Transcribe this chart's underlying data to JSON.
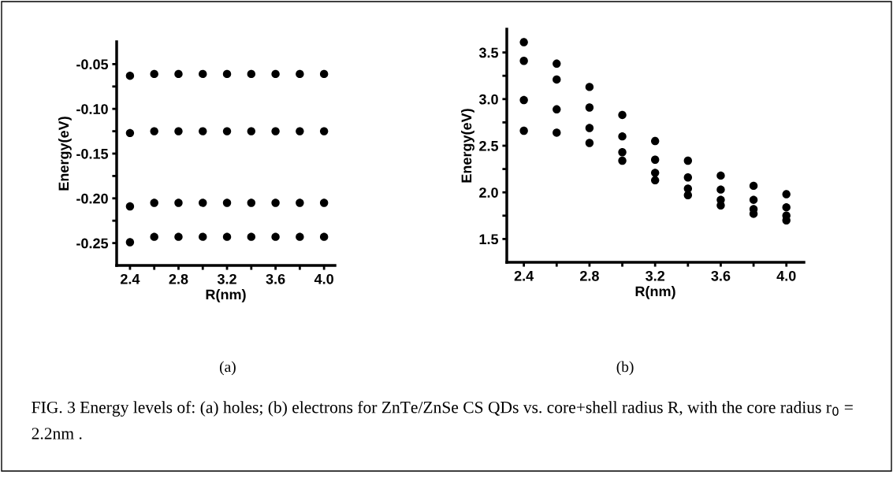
{
  "chart_data": [
    {
      "type": "scatter",
      "xlabel": "R(nm)",
      "ylabel": "Energy(eV)",
      "marker": "circle",
      "grid": false,
      "xlim": [
        2.29,
        4.09
      ],
      "xticks": [
        2.4,
        {
          "value": 2.6,
          "label": null
        },
        2.8,
        {
          "value": 3.0,
          "label": null
        },
        3.2,
        {
          "value": 3.4,
          "label": null
        },
        3.6,
        {
          "value": 3.8,
          "label": null
        },
        {
          "value": 4.0,
          "label": "4.0"
        }
      ],
      "ylim": [
        -0.275,
        -0.025
      ],
      "yticks": [
        {
          "value": -0.25,
          "label": "-0.25"
        },
        {
          "value": -0.225,
          "label": null
        },
        {
          "value": -0.2,
          "label": "-0.20"
        },
        {
          "value": -0.175,
          "label": null
        },
        {
          "value": -0.15,
          "label": "-0.15"
        },
        {
          "value": -0.125,
          "label": null
        },
        {
          "value": -0.1,
          "label": "-0.10"
        },
        {
          "value": -0.075,
          "label": null
        },
        {
          "value": -0.05,
          "label": "-0.05"
        }
      ],
      "series": [
        {
          "color": "#000000",
          "x": [
            2.4,
            2.6,
            2.8,
            3.0,
            3.2,
            3.4,
            3.6,
            3.8,
            4.0
          ],
          "values": [
            -0.063,
            -0.061,
            -0.061,
            -0.061,
            -0.061,
            -0.061,
            -0.061,
            -0.061,
            -0.061
          ]
        },
        {
          "color": "#000000",
          "x": [
            2.4,
            2.6,
            2.8,
            3.0,
            3.2,
            3.4,
            3.6,
            3.8,
            4.0
          ],
          "values": [
            -0.127,
            -0.125,
            -0.125,
            -0.125,
            -0.125,
            -0.125,
            -0.125,
            -0.125,
            -0.125
          ]
        },
        {
          "color": "#000000",
          "x": [
            2.4,
            2.6,
            2.8,
            3.0,
            3.2,
            3.4,
            3.6,
            3.8,
            4.0
          ],
          "values": [
            -0.209,
            -0.205,
            -0.205,
            -0.205,
            -0.205,
            -0.205,
            -0.205,
            -0.205,
            -0.205
          ]
        },
        {
          "color": "#000000",
          "x": [
            2.4,
            2.6,
            2.8,
            3.0,
            3.2,
            3.4,
            3.6,
            3.8,
            4.0
          ],
          "values": [
            -0.249,
            -0.243,
            -0.243,
            -0.243,
            -0.243,
            -0.243,
            -0.243,
            -0.243,
            -0.243
          ]
        }
      ],
      "annotations": [
        "(a)"
      ]
    },
    {
      "type": "scatter",
      "xlabel": "R(nm)",
      "ylabel": "Energy(eV)",
      "marker": "circle",
      "grid": false,
      "xlim": [
        2.296,
        4.107
      ],
      "xticks": [
        2.4,
        {
          "value": 2.6,
          "label": null
        },
        2.8,
        {
          "value": 3.0,
          "label": null
        },
        3.2,
        {
          "value": 3.4,
          "label": null
        },
        3.6,
        {
          "value": 3.8,
          "label": null
        },
        {
          "value": 4.0,
          "label": "4.0"
        }
      ],
      "ylim": [
        1.25,
        3.75
      ],
      "yticks": [
        1.5,
        {
          "value": 1.75,
          "label": null
        },
        {
          "value": 2.0,
          "label": "2.0"
        },
        {
          "value": 2.25,
          "label": null
        },
        2.5,
        {
          "value": 2.75,
          "label": null
        },
        {
          "value": 3.0,
          "label": "3.0"
        },
        {
          "value": 3.25,
          "label": null
        },
        3.5
      ],
      "series": [
        {
          "color": "#000000",
          "x": [
            2.4,
            2.6,
            2.8,
            3.0,
            3.2,
            3.4,
            3.6,
            3.8,
            4.0
          ],
          "values": [
            3.61,
            3.38,
            3.13,
            2.83,
            2.55,
            2.34,
            2.18,
            2.07,
            1.98
          ]
        },
        {
          "color": "#000000",
          "x": [
            2.4,
            2.6,
            2.8,
            3.0,
            3.2,
            3.4,
            3.6,
            3.8,
            4.0
          ],
          "values": [
            3.41,
            3.21,
            2.91,
            2.6,
            2.35,
            2.16,
            2.03,
            1.92,
            1.84
          ]
        },
        {
          "color": "#000000",
          "x": [
            2.4,
            2.6,
            2.8,
            3.0,
            3.2,
            3.4,
            3.6,
            3.8,
            4.0
          ],
          "values": [
            2.99,
            2.89,
            2.69,
            2.43,
            2.21,
            2.04,
            1.92,
            1.82,
            1.75
          ]
        },
        {
          "color": "#000000",
          "x": [
            2.4,
            2.6,
            2.8,
            3.0,
            3.2,
            3.4,
            3.6,
            3.8,
            4.0
          ],
          "values": [
            2.66,
            2.64,
            2.53,
            2.34,
            2.13,
            1.97,
            1.86,
            1.77,
            1.7
          ]
        }
      ],
      "annotations": [
        "(b)",
        "FIG. 3 Energy levels of: (a) holes; (b) electrons for ZnTe/ZnSe CS QDs vs. core+shell radius R, with the core radius r$_{0}$ = 2.2nm ."
      ]
    }
  ]
}
